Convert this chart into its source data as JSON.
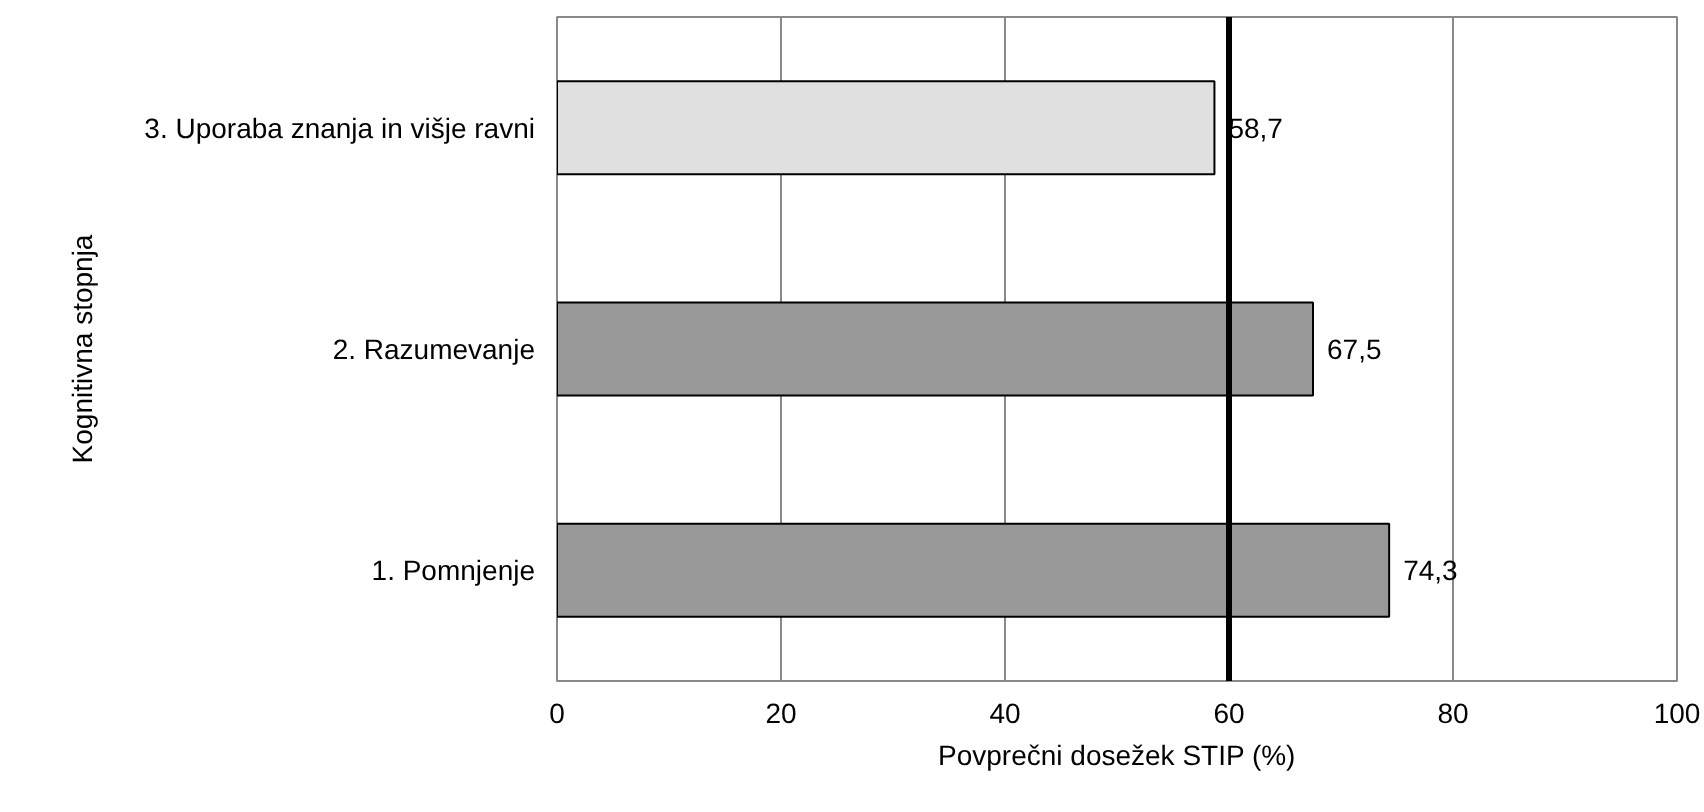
{
  "chart_data": {
    "type": "bar",
    "orientation": "horizontal",
    "categories": [
      "3. Uporaba znanja in višje ravni",
      "2. Razumevanje",
      "1. Pomnjenje"
    ],
    "values": [
      58.7,
      67.5,
      74.3
    ],
    "colors": [
      "#e0e0e0",
      "#999999",
      "#999999"
    ],
    "value_labels": [
      "58,7",
      "67,5",
      "74,3"
    ],
    "xlim": [
      0,
      100
    ],
    "xticks": [
      0,
      20,
      40,
      60,
      80,
      100
    ],
    "xlabel": "Povprečni dosežek STIP (%)",
    "ylabel": "Kognitivna stopnja",
    "ref_lines": [
      {
        "axis": "x",
        "value": 60,
        "color": "#000000"
      }
    ],
    "grid": "x"
  }
}
